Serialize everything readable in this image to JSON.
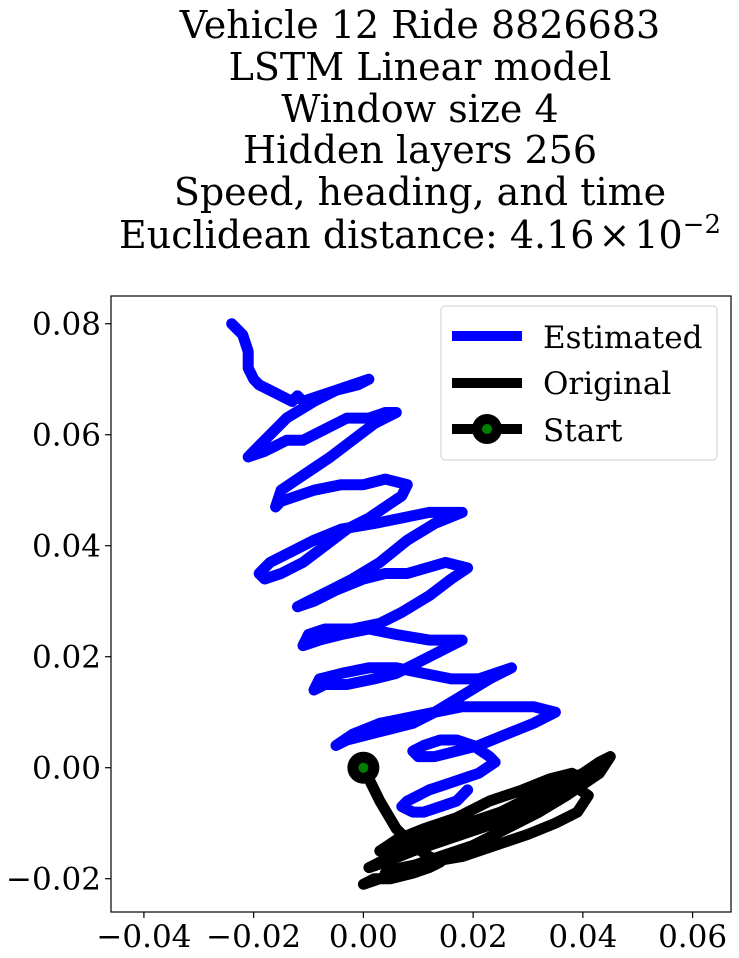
{
  "chart_data": {
    "type": "line",
    "title_lines": [
      "Vehicle 12 Ride 8826683",
      "LSTM Linear model",
      "Window size 4",
      "Hidden layers 256",
      "Speed, heading, and time"
    ],
    "metric": {
      "prefix": "Euclidean distance: ",
      "mantissa": "4.16",
      "times": "×",
      "base": "10",
      "exponent": "−2"
    },
    "xlim": [
      -0.046,
      0.067
    ],
    "ylim": [
      -0.026,
      0.085
    ],
    "xticks": [
      -0.04,
      -0.02,
      0.0,
      0.02,
      0.04,
      0.06
    ],
    "xtick_labels": [
      "−0.04",
      "−0.02",
      "0.00",
      "0.02",
      "0.04",
      "0.06"
    ],
    "yticks": [
      -0.02,
      0.0,
      0.02,
      0.04,
      0.06,
      0.08
    ],
    "ytick_labels": [
      "−0.02",
      "0.00",
      "0.02",
      "0.04",
      "0.06",
      "0.08"
    ],
    "grid": false,
    "legend_position": "top-right",
    "legend": [
      "Estimated",
      "Original",
      "Start"
    ],
    "colors": {
      "estimated": "#0000ff",
      "original": "#000000",
      "start_marker": "#008000"
    },
    "series": [
      {
        "name": "Estimated",
        "x": [
          -0.024,
          -0.022,
          -0.021,
          -0.021,
          -0.02,
          -0.019,
          -0.017,
          -0.015,
          -0.013,
          -0.012,
          -0.011,
          -0.008,
          -0.005,
          -0.001,
          0.001,
          -0.005,
          -0.009,
          -0.014,
          -0.017,
          -0.019,
          -0.021,
          -0.018,
          -0.014,
          -0.011,
          -0.007,
          -0.003,
          0.001,
          0.004,
          0.006,
          0.002,
          -0.002,
          -0.006,
          -0.009,
          -0.012,
          -0.015,
          -0.016,
          -0.015,
          -0.012,
          -0.009,
          -0.004,
          0.0,
          0.004,
          0.008,
          0.007,
          0.004,
          0.001,
          -0.003,
          -0.007,
          -0.011,
          -0.015,
          -0.018,
          -0.019,
          -0.017,
          -0.013,
          -0.009,
          -0.004,
          0.002,
          0.007,
          0.012,
          0.018,
          0.013,
          0.008,
          0.003,
          -0.002,
          -0.006,
          -0.01,
          -0.012,
          -0.009,
          -0.005,
          0.0,
          0.004,
          0.008,
          0.015,
          0.019,
          0.016,
          0.012,
          0.007,
          0.003,
          -0.002,
          -0.007,
          -0.01,
          -0.011,
          -0.008,
          -0.004,
          0.001,
          0.006,
          0.012,
          0.016,
          0.018,
          0.014,
          0.01,
          0.006,
          0.002,
          -0.003,
          -0.007,
          -0.009,
          -0.008,
          -0.004,
          0.001,
          0.006,
          0.011,
          0.016,
          0.021,
          0.027,
          0.023,
          0.018,
          0.013,
          0.009,
          0.005,
          0.001,
          -0.003,
          -0.005,
          -0.002,
          0.003,
          0.008,
          0.013,
          0.018,
          0.024,
          0.031,
          0.035,
          0.031,
          0.026,
          0.021,
          0.017,
          0.013,
          0.01,
          0.009,
          0.011,
          0.014,
          0.017,
          0.02,
          0.023,
          0.024,
          0.021,
          0.018,
          0.015,
          0.012,
          0.01,
          0.008,
          0.007,
          0.009,
          0.011,
          0.014,
          0.017,
          0.019
        ],
        "y": [
          0.08,
          0.078,
          0.075,
          0.072,
          0.07,
          0.069,
          0.068,
          0.067,
          0.066,
          0.067,
          0.066,
          0.067,
          0.068,
          0.069,
          0.07,
          0.068,
          0.066,
          0.063,
          0.06,
          0.058,
          0.056,
          0.057,
          0.059,
          0.059,
          0.061,
          0.063,
          0.063,
          0.064,
          0.064,
          0.062,
          0.059,
          0.056,
          0.054,
          0.052,
          0.05,
          0.047,
          0.048,
          0.049,
          0.05,
          0.051,
          0.051,
          0.052,
          0.051,
          0.049,
          0.047,
          0.045,
          0.043,
          0.04,
          0.037,
          0.035,
          0.034,
          0.035,
          0.037,
          0.039,
          0.041,
          0.043,
          0.044,
          0.045,
          0.046,
          0.046,
          0.044,
          0.041,
          0.037,
          0.034,
          0.032,
          0.03,
          0.029,
          0.03,
          0.032,
          0.034,
          0.035,
          0.035,
          0.037,
          0.036,
          0.034,
          0.031,
          0.028,
          0.026,
          0.025,
          0.025,
          0.024,
          0.022,
          0.023,
          0.024,
          0.025,
          0.024,
          0.023,
          0.023,
          0.023,
          0.021,
          0.019,
          0.017,
          0.016,
          0.015,
          0.015,
          0.014,
          0.016,
          0.017,
          0.018,
          0.018,
          0.017,
          0.016,
          0.016,
          0.018,
          0.016,
          0.013,
          0.01,
          0.008,
          0.007,
          0.006,
          0.005,
          0.004,
          0.006,
          0.008,
          0.009,
          0.01,
          0.011,
          0.011,
          0.011,
          0.01,
          0.008,
          0.006,
          0.004,
          0.003,
          0.002,
          0.002,
          0.003,
          0.004,
          0.005,
          0.005,
          0.004,
          0.002,
          0.001,
          -0.001,
          -0.002,
          -0.003,
          -0.004,
          -0.005,
          -0.006,
          -0.007,
          -0.008,
          -0.008,
          -0.007,
          -0.006,
          -0.004
        ]
      },
      {
        "name": "Original",
        "x": [
          0.0,
          0.003,
          0.006,
          0.009,
          0.012,
          0.014,
          0.012,
          0.009,
          0.005,
          0.002,
          0.0,
          0.003,
          0.008,
          0.014,
          0.02,
          0.026,
          0.032,
          0.037,
          0.04,
          0.043,
          0.045,
          0.043,
          0.04,
          0.036,
          0.031,
          0.025,
          0.019,
          0.013,
          0.007,
          0.003,
          0.001,
          0.004,
          0.009,
          0.015,
          0.021,
          0.027,
          0.033,
          0.038,
          0.04,
          0.038,
          0.034,
          0.029,
          0.023,
          0.017,
          0.011,
          0.006,
          0.003,
          0.006,
          0.011,
          0.017,
          0.023,
          0.029,
          0.034,
          0.038,
          0.041,
          0.039,
          0.035,
          0.03,
          0.024,
          0.018,
          0.012,
          0.007,
          0.004
        ],
        "y": [
          0.0,
          -0.006,
          -0.011,
          -0.014,
          -0.016,
          -0.017,
          -0.018,
          -0.019,
          -0.02,
          -0.02,
          -0.021,
          -0.02,
          -0.018,
          -0.016,
          -0.014,
          -0.011,
          -0.008,
          -0.005,
          -0.003,
          -0.001,
          0.002,
          0.001,
          -0.001,
          -0.003,
          -0.005,
          -0.008,
          -0.01,
          -0.013,
          -0.015,
          -0.017,
          -0.018,
          -0.017,
          -0.015,
          -0.013,
          -0.011,
          -0.009,
          -0.006,
          -0.004,
          -0.002,
          -0.001,
          -0.002,
          -0.004,
          -0.006,
          -0.009,
          -0.011,
          -0.013,
          -0.015,
          -0.014,
          -0.013,
          -0.011,
          -0.009,
          -0.007,
          -0.005,
          -0.003,
          -0.005,
          -0.008,
          -0.01,
          -0.012,
          -0.014,
          -0.016,
          -0.017,
          -0.018,
          -0.019
        ]
      }
    ],
    "start_point": {
      "x": 0.0,
      "y": 0.0
    }
  }
}
